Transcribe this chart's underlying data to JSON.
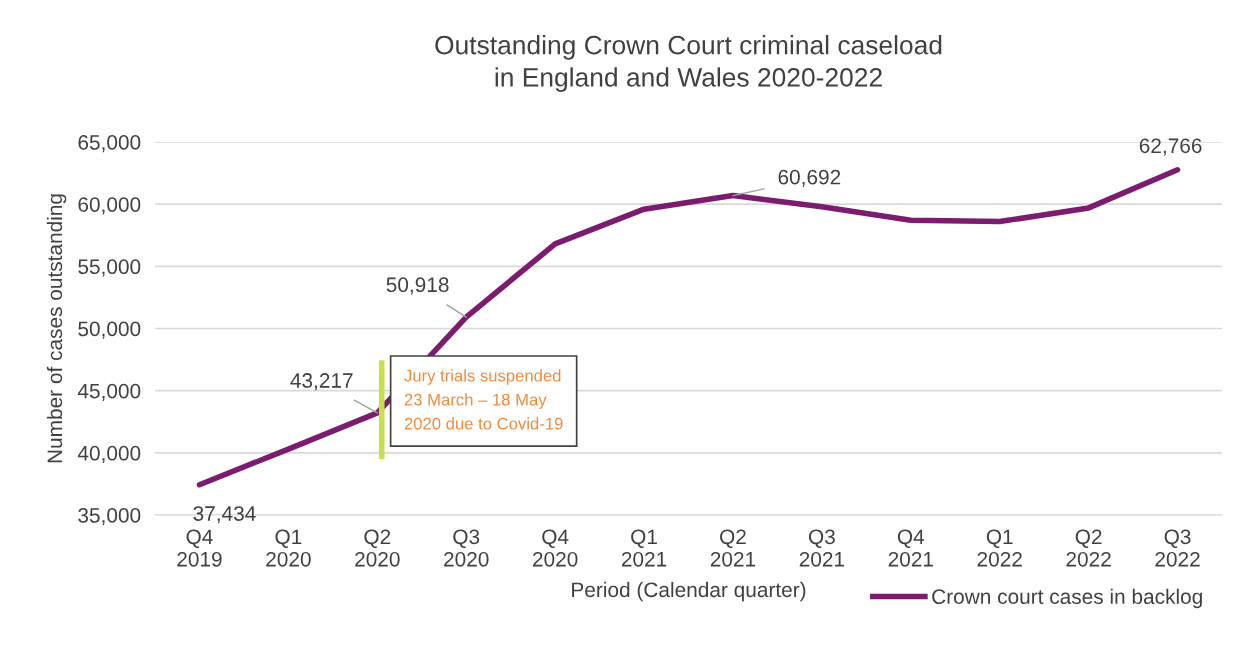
{
  "chart_data": {
    "type": "line",
    "title": "Outstanding Crown Court criminal caseload\nin England and Wales 2020-2022",
    "xlabel": "Period (Calendar quarter)",
    "ylabel": "Number of cases outstanding",
    "categories": [
      "Q4\n2019",
      "Q1\n2020",
      "Q2\n2020",
      "Q3\n2020",
      "Q4\n2020",
      "Q1\n2021",
      "Q2\n2021",
      "Q3\n2021",
      "Q4\n2021",
      "Q1\n2022",
      "Q2\n2022",
      "Q3\n2022"
    ],
    "series": [
      {
        "name": "Crown court cases in backlog",
        "color": "#7b1c6e",
        "values": [
          37434,
          40300,
          43217,
          50918,
          56800,
          59600,
          60692,
          59800,
          58700,
          58600,
          59700,
          62766
        ],
        "value_labels": [
          "37,434",
          null,
          "43,217",
          "50,918",
          null,
          null,
          "60,692",
          null,
          null,
          null,
          null,
          "62,766"
        ]
      }
    ],
    "ylim": [
      35000,
      65000
    ],
    "yticks": [
      {
        "value": 35000,
        "label": "35,000"
      },
      {
        "value": 40000,
        "label": "40,000"
      },
      {
        "value": 45000,
        "label": "45,000"
      },
      {
        "value": 50000,
        "label": "50,000"
      },
      {
        "value": 55000,
        "label": "55,000"
      },
      {
        "value": 60000,
        "label": "60,000"
      },
      {
        "value": 65000,
        "label": "65,000"
      }
    ],
    "grid": "y",
    "legend": "bottom right",
    "marker": "none",
    "line_style": "solid",
    "annotations": [
      {
        "text": "Jury trials suspended\n23 March – 18 May\n2020 due to Covid-19",
        "x": "Q2\n2020",
        "y": 43217
      }
    ]
  }
}
